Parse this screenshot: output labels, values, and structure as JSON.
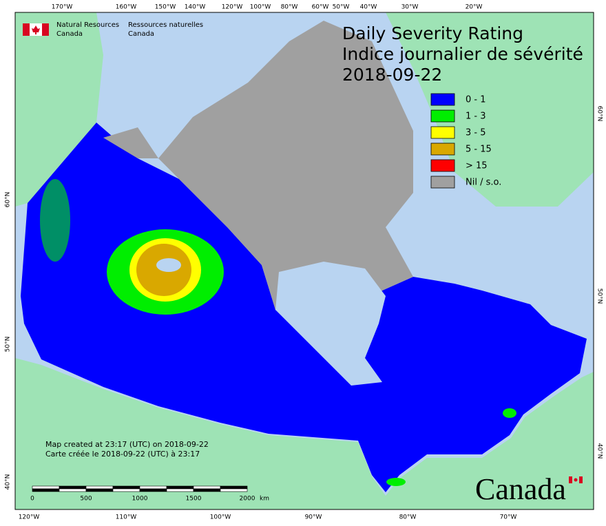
{
  "header": {
    "title": "Daily Severity Rating",
    "subtitle": "Indice journalier de sévérité",
    "date": "2018-09-22"
  },
  "agency": {
    "english": [
      "Natural Resources",
      "Canada"
    ],
    "french": [
      "Ressources naturelles",
      "Canada"
    ]
  },
  "legend": {
    "items": [
      {
        "label": "0 - 1",
        "color": "#0000ff"
      },
      {
        "label": "1 - 3",
        "color": "#00ee00"
      },
      {
        "label": "3 - 5",
        "color": "#ffff00"
      },
      {
        "label": "5 - 15",
        "color": "#d9a800"
      },
      {
        "label": "> 15",
        "color": "#ff0000"
      },
      {
        "label": "Nil / s.o.",
        "color": "#a0a0a0"
      }
    ]
  },
  "graticule": {
    "top": [
      "170°W",
      "160°W",
      "150°W",
      "140°W",
      "120°W",
      "100°W",
      "80°W",
      "60°W",
      "50°W",
      "40°W",
      "30°W",
      "20°W"
    ],
    "bottom": [
      "120°W",
      "110°W",
      "100°W",
      "90°W",
      "80°W",
      "70°W"
    ],
    "left": [
      "60°N",
      "50°N",
      "40°N"
    ],
    "right": [
      "60°N",
      "50°N",
      "40°N"
    ]
  },
  "scale_bar": {
    "labels": [
      "0",
      "500",
      "1000",
      "1500",
      "2000"
    ],
    "unit": "km"
  },
  "credits": [
    "Map created at 23:17 (UTC) on 2018-09-22",
    "Carte créée le 2018-09-22 (UTC) à 23:17"
  ],
  "wordmark": "Canada"
}
